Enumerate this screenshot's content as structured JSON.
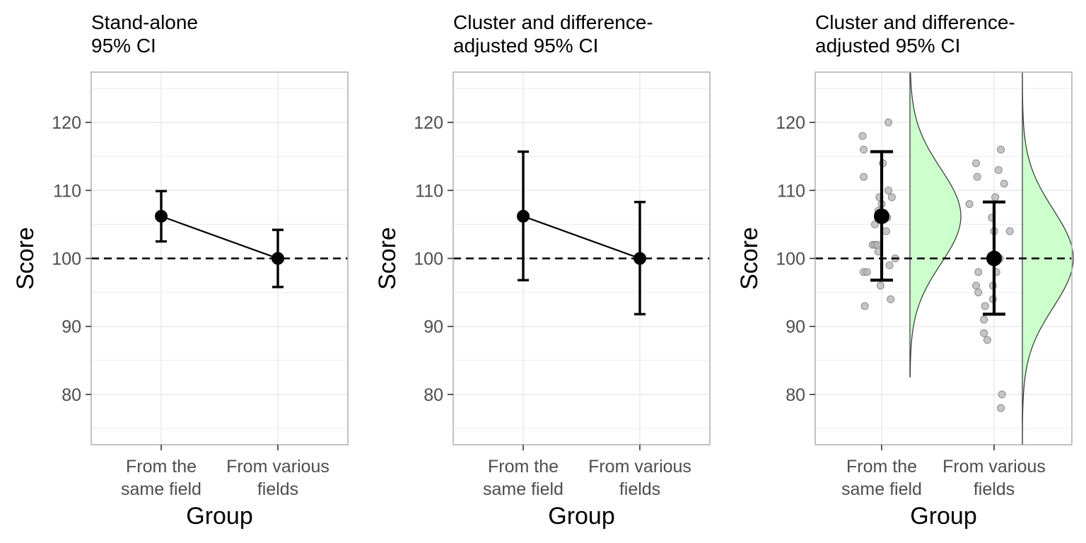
{
  "chart_data": [
    {
      "type": "line",
      "title_lines": [
        "Stand-alone",
        "95% CI"
      ],
      "xlabel": "Group",
      "ylabel": "Score",
      "categories": [
        [
          "From the",
          "same field"
        ],
        [
          "From various",
          "fields"
        ]
      ],
      "yticks": [
        80,
        90,
        100,
        110,
        120
      ],
      "ylim": [
        72.6,
        127.4
      ],
      "grid": true,
      "reference_line": 100,
      "means": [
        106.2,
        100.0
      ],
      "ci_lower": [
        102.5,
        95.8
      ],
      "ci_upper": [
        109.9,
        104.2
      ],
      "connect_means": true
    },
    {
      "type": "line",
      "title_lines": [
        "Cluster and difference-",
        "adjusted 95% CI"
      ],
      "xlabel": "Group",
      "ylabel": "Score",
      "categories": [
        [
          "From the",
          "same field"
        ],
        [
          "From various",
          "fields"
        ]
      ],
      "yticks": [
        80,
        90,
        100,
        110,
        120
      ],
      "ylim": [
        72.6,
        127.4
      ],
      "grid": true,
      "reference_line": 100,
      "means": [
        106.2,
        100.0
      ],
      "ci_lower": [
        96.8,
        91.8
      ],
      "ci_upper": [
        115.7,
        108.3
      ],
      "connect_means": true
    },
    {
      "type": "scatter",
      "title_lines": [
        "Cluster and difference-",
        "adjusted 95% CI"
      ],
      "xlabel": "Group",
      "ylabel": "Score",
      "categories": [
        [
          "From the",
          "same field"
        ],
        [
          "From various",
          "fields"
        ]
      ],
      "yticks": [
        80,
        90,
        100,
        110,
        120
      ],
      "ylim": [
        72.6,
        127.4
      ],
      "grid": true,
      "reference_line": 100,
      "means": [
        106.2,
        100.0
      ],
      "ci_lower": [
        96.8,
        91.8
      ],
      "ci_upper": [
        115.7,
        108.3
      ],
      "connect_means": false,
      "raw_points": [
        {
          "group": 0,
          "offset": -0.17,
          "y": 118
        },
        {
          "group": 0,
          "offset": -0.16,
          "y": 116
        },
        {
          "group": 0,
          "offset": -0.16,
          "y": 112
        },
        {
          "group": 0,
          "offset": -0.16,
          "y": 98
        },
        {
          "group": 0,
          "offset": -0.13,
          "y": 98
        },
        {
          "group": 0,
          "offset": -0.15,
          "y": 93
        },
        {
          "group": 0,
          "offset": -0.08,
          "y": 102
        },
        {
          "group": 0,
          "offset": -0.06,
          "y": 102
        },
        {
          "group": 0,
          "offset": -0.04,
          "y": 102
        },
        {
          "group": 0,
          "offset": -0.06,
          "y": 105
        },
        {
          "group": 0,
          "offset": -0.03,
          "y": 107
        },
        {
          "group": 0,
          "offset": -0.02,
          "y": 109
        },
        {
          "group": 0,
          "offset": -0.03,
          "y": 101
        },
        {
          "group": 0,
          "offset": -0.01,
          "y": 96
        },
        {
          "group": 0,
          "offset": 0.01,
          "y": 114
        },
        {
          "group": 0,
          "offset": 0.0,
          "y": 108
        },
        {
          "group": 0,
          "offset": 0.04,
          "y": 104
        },
        {
          "group": 0,
          "offset": 0.05,
          "y": 106
        },
        {
          "group": 0,
          "offset": 0.06,
          "y": 110
        },
        {
          "group": 0,
          "offset": 0.06,
          "y": 120
        },
        {
          "group": 0,
          "offset": 0.07,
          "y": 99
        },
        {
          "group": 0,
          "offset": 0.09,
          "y": 109
        },
        {
          "group": 0,
          "offset": 0.08,
          "y": 94
        },
        {
          "group": 0,
          "offset": 0.12,
          "y": 100
        },
        {
          "group": 1,
          "offset": -0.22,
          "y": 108
        },
        {
          "group": 1,
          "offset": -0.16,
          "y": 114
        },
        {
          "group": 1,
          "offset": -0.15,
          "y": 112
        },
        {
          "group": 1,
          "offset": -0.16,
          "y": 96
        },
        {
          "group": 1,
          "offset": -0.14,
          "y": 95
        },
        {
          "group": 1,
          "offset": -0.14,
          "y": 98
        },
        {
          "group": 1,
          "offset": -0.09,
          "y": 91
        },
        {
          "group": 1,
          "offset": -0.09,
          "y": 89
        },
        {
          "group": 1,
          "offset": -0.08,
          "y": 93
        },
        {
          "group": 1,
          "offset": -0.06,
          "y": 88
        },
        {
          "group": 1,
          "offset": -0.02,
          "y": 106
        },
        {
          "group": 1,
          "offset": -0.01,
          "y": 96
        },
        {
          "group": 1,
          "offset": -0.01,
          "y": 94
        },
        {
          "group": 1,
          "offset": 0.01,
          "y": 109
        },
        {
          "group": 1,
          "offset": 0.0,
          "y": 104
        },
        {
          "group": 1,
          "offset": 0.02,
          "y": 98
        },
        {
          "group": 1,
          "offset": 0.03,
          "y": 100
        },
        {
          "group": 1,
          "offset": 0.05,
          "y": 100
        },
        {
          "group": 1,
          "offset": 0.04,
          "y": 113
        },
        {
          "group": 1,
          "offset": 0.06,
          "y": 116
        },
        {
          "group": 1,
          "offset": 0.09,
          "y": 111
        },
        {
          "group": 1,
          "offset": 0.14,
          "y": 104
        },
        {
          "group": 1,
          "offset": 0.07,
          "y": 80
        },
        {
          "group": 1,
          "offset": 0.06,
          "y": 78
        }
      ],
      "densities": [
        {
          "group": 0,
          "mean": 106.2,
          "sd": 7.0,
          "from": 82.5,
          "to": 127.4,
          "fill": "#ccffcc"
        },
        {
          "group": 1,
          "mean": 100.0,
          "sd": 7.2,
          "from": 72.6,
          "to": 127.4,
          "fill": "#ccffcc"
        }
      ]
    }
  ],
  "colors": {
    "grid": "#ebebeb",
    "panel_border": "#b3b3b3",
    "tick_mark": "#333333",
    "point": "#000000",
    "raw_point_fill": "#b3b3b3",
    "raw_point_stroke": "#8c8c8c",
    "density_fill": "#ccffcc",
    "density_stroke": "#333333"
  }
}
